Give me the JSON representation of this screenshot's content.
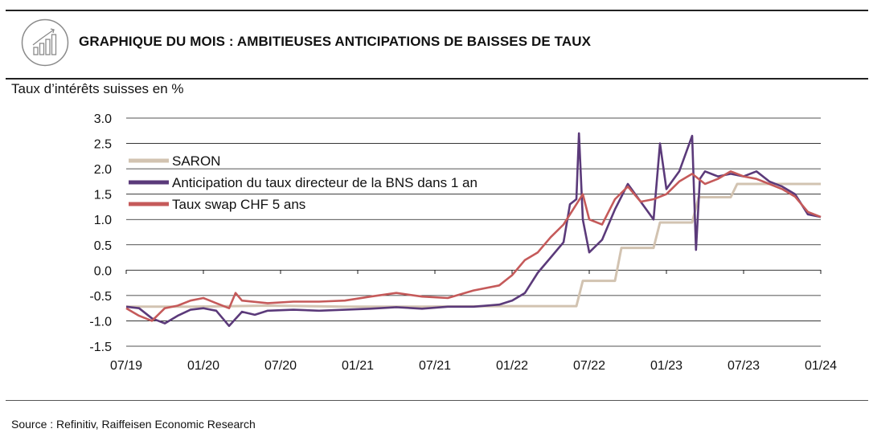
{
  "header": {
    "title": "GRAPHIQUE DU MOIS : AMBITIEUSES ANTICIPATIONS DE BAISSES DE TAUX",
    "icon": "bar-chart-icon"
  },
  "subtitle": "Taux d’intérêts suisses en %",
  "source": "Source : Refinitiv, Raiffeisen Economic Research",
  "chart_data": {
    "type": "line",
    "title": "GRAPHIQUE DU MOIS : AMBITIEUSES ANTICIPATIONS DE BAISSES DE TAUX",
    "ylabel": "Taux d’intérêts suisses en %",
    "xlabel": "",
    "ylim": [
      -1.5,
      3.0
    ],
    "yticks": [
      3.0,
      2.5,
      2.0,
      1.5,
      1.0,
      0.5,
      0.0,
      -0.5,
      -1.0,
      -1.5
    ],
    "ytick_labels": [
      "3.0",
      "2.5",
      "2.0",
      "1.5",
      "1.0",
      "0.5",
      "0.0",
      "-0.5",
      "-1.0",
      "-1.5"
    ],
    "xlim": [
      "2019-07",
      "2024-01"
    ],
    "xtick_labels": [
      "07/19",
      "01/20",
      "07/20",
      "01/21",
      "07/21",
      "01/22",
      "07/22",
      "01/23",
      "07/23",
      "01/24"
    ],
    "grid": "horizontal",
    "legend_position": "top-left",
    "series": [
      {
        "name": "SARON",
        "color": "#d2c3b1",
        "points": [
          [
            "2019-07",
            -0.72
          ],
          [
            "2019-12",
            -0.72
          ],
          [
            "2020-06",
            -0.7
          ],
          [
            "2020-12",
            -0.72
          ],
          [
            "2021-06",
            -0.72
          ],
          [
            "2021-12",
            -0.71
          ],
          [
            "2022-06",
            -0.71
          ],
          [
            "2022-06.5",
            -0.21
          ],
          [
            "2022-09",
            -0.21
          ],
          [
            "2022-09.5",
            0.44
          ],
          [
            "2022-12",
            0.44
          ],
          [
            "2022-12.5",
            0.94
          ],
          [
            "2023-03",
            0.94
          ],
          [
            "2023-03.5",
            1.44
          ],
          [
            "2023-06",
            1.44
          ],
          [
            "2023-06.5",
            1.7
          ],
          [
            "2024-01",
            1.7
          ]
        ]
      },
      {
        "name": "Anticipation du taux directeur de la BNS dans 1 an",
        "color": "#5b3a7a",
        "points": [
          [
            "2019-07",
            -0.72
          ],
          [
            "2019-08",
            -0.75
          ],
          [
            "2019-09",
            -0.95
          ],
          [
            "2019-10",
            -1.05
          ],
          [
            "2019-11",
            -0.9
          ],
          [
            "2019-12",
            -0.78
          ],
          [
            "2020-01",
            -0.75
          ],
          [
            "2020-02",
            -0.8
          ],
          [
            "2020-03",
            -1.1
          ],
          [
            "2020-04",
            -0.82
          ],
          [
            "2020-05",
            -0.88
          ],
          [
            "2020-06",
            -0.8
          ],
          [
            "2020-08",
            -0.78
          ],
          [
            "2020-10",
            -0.8
          ],
          [
            "2020-12",
            -0.78
          ],
          [
            "2021-02",
            -0.76
          ],
          [
            "2021-04",
            -0.73
          ],
          [
            "2021-06",
            -0.76
          ],
          [
            "2021-08",
            -0.72
          ],
          [
            "2021-10",
            -0.72
          ],
          [
            "2021-12",
            -0.68
          ],
          [
            "2022-01",
            -0.6
          ],
          [
            "2022-02",
            -0.45
          ],
          [
            "2022-03",
            -0.05
          ],
          [
            "2022-04",
            0.25
          ],
          [
            "2022-05",
            0.55
          ],
          [
            "2022-05.5",
            1.3
          ],
          [
            "2022-06",
            1.4
          ],
          [
            "2022-06.2",
            2.7
          ],
          [
            "2022-06.5",
            1.0
          ],
          [
            "2022-07",
            0.35
          ],
          [
            "2022-08",
            0.6
          ],
          [
            "2022-09",
            1.2
          ],
          [
            "2022-10",
            1.7
          ],
          [
            "2022-11",
            1.35
          ],
          [
            "2022-12",
            1.0
          ],
          [
            "2022-12.5",
            2.5
          ],
          [
            "2023-01",
            1.6
          ],
          [
            "2023-02",
            1.95
          ],
          [
            "2023-03",
            2.65
          ],
          [
            "2023-03.3",
            0.4
          ],
          [
            "2023-03.6",
            1.8
          ],
          [
            "2023-04",
            1.95
          ],
          [
            "2023-05",
            1.85
          ],
          [
            "2023-06",
            1.9
          ],
          [
            "2023-07",
            1.85
          ],
          [
            "2023-08",
            1.95
          ],
          [
            "2023-09",
            1.75
          ],
          [
            "2023-10",
            1.65
          ],
          [
            "2023-11",
            1.5
          ],
          [
            "2023-12",
            1.1
          ],
          [
            "2024-01",
            1.05
          ]
        ]
      },
      {
        "name": "Taux swap CHF 5 ans",
        "color": "#c55a5a",
        "points": [
          [
            "2019-07",
            -0.75
          ],
          [
            "2019-08",
            -0.9
          ],
          [
            "2019-09",
            -1.0
          ],
          [
            "2019-10",
            -0.75
          ],
          [
            "2019-11",
            -0.7
          ],
          [
            "2019-12",
            -0.6
          ],
          [
            "2020-01",
            -0.55
          ],
          [
            "2020-02",
            -0.65
          ],
          [
            "2020-03",
            -0.75
          ],
          [
            "2020-03.5",
            -0.45
          ],
          [
            "2020-04",
            -0.6
          ],
          [
            "2020-06",
            -0.65
          ],
          [
            "2020-08",
            -0.62
          ],
          [
            "2020-10",
            -0.62
          ],
          [
            "2020-12",
            -0.6
          ],
          [
            "2021-02",
            -0.52
          ],
          [
            "2021-04",
            -0.45
          ],
          [
            "2021-06",
            -0.52
          ],
          [
            "2021-08",
            -0.55
          ],
          [
            "2021-10",
            -0.4
          ],
          [
            "2021-12",
            -0.3
          ],
          [
            "2022-01",
            -0.1
          ],
          [
            "2022-02",
            0.2
          ],
          [
            "2022-03",
            0.35
          ],
          [
            "2022-04",
            0.65
          ],
          [
            "2022-05",
            0.9
          ],
          [
            "2022-06",
            1.3
          ],
          [
            "2022-06.5",
            1.5
          ],
          [
            "2022-07",
            1.0
          ],
          [
            "2022-08",
            0.9
          ],
          [
            "2022-09",
            1.4
          ],
          [
            "2022-10",
            1.65
          ],
          [
            "2022-11",
            1.35
          ],
          [
            "2022-12",
            1.4
          ],
          [
            "2023-01",
            1.5
          ],
          [
            "2023-02",
            1.75
          ],
          [
            "2023-03",
            1.9
          ],
          [
            "2023-04",
            1.7
          ],
          [
            "2023-05",
            1.8
          ],
          [
            "2023-06",
            1.95
          ],
          [
            "2023-07",
            1.85
          ],
          [
            "2023-08",
            1.8
          ],
          [
            "2023-09",
            1.7
          ],
          [
            "2023-10",
            1.6
          ],
          [
            "2023-11",
            1.45
          ],
          [
            "2023-12",
            1.15
          ],
          [
            "2024-01",
            1.05
          ]
        ]
      }
    ]
  }
}
